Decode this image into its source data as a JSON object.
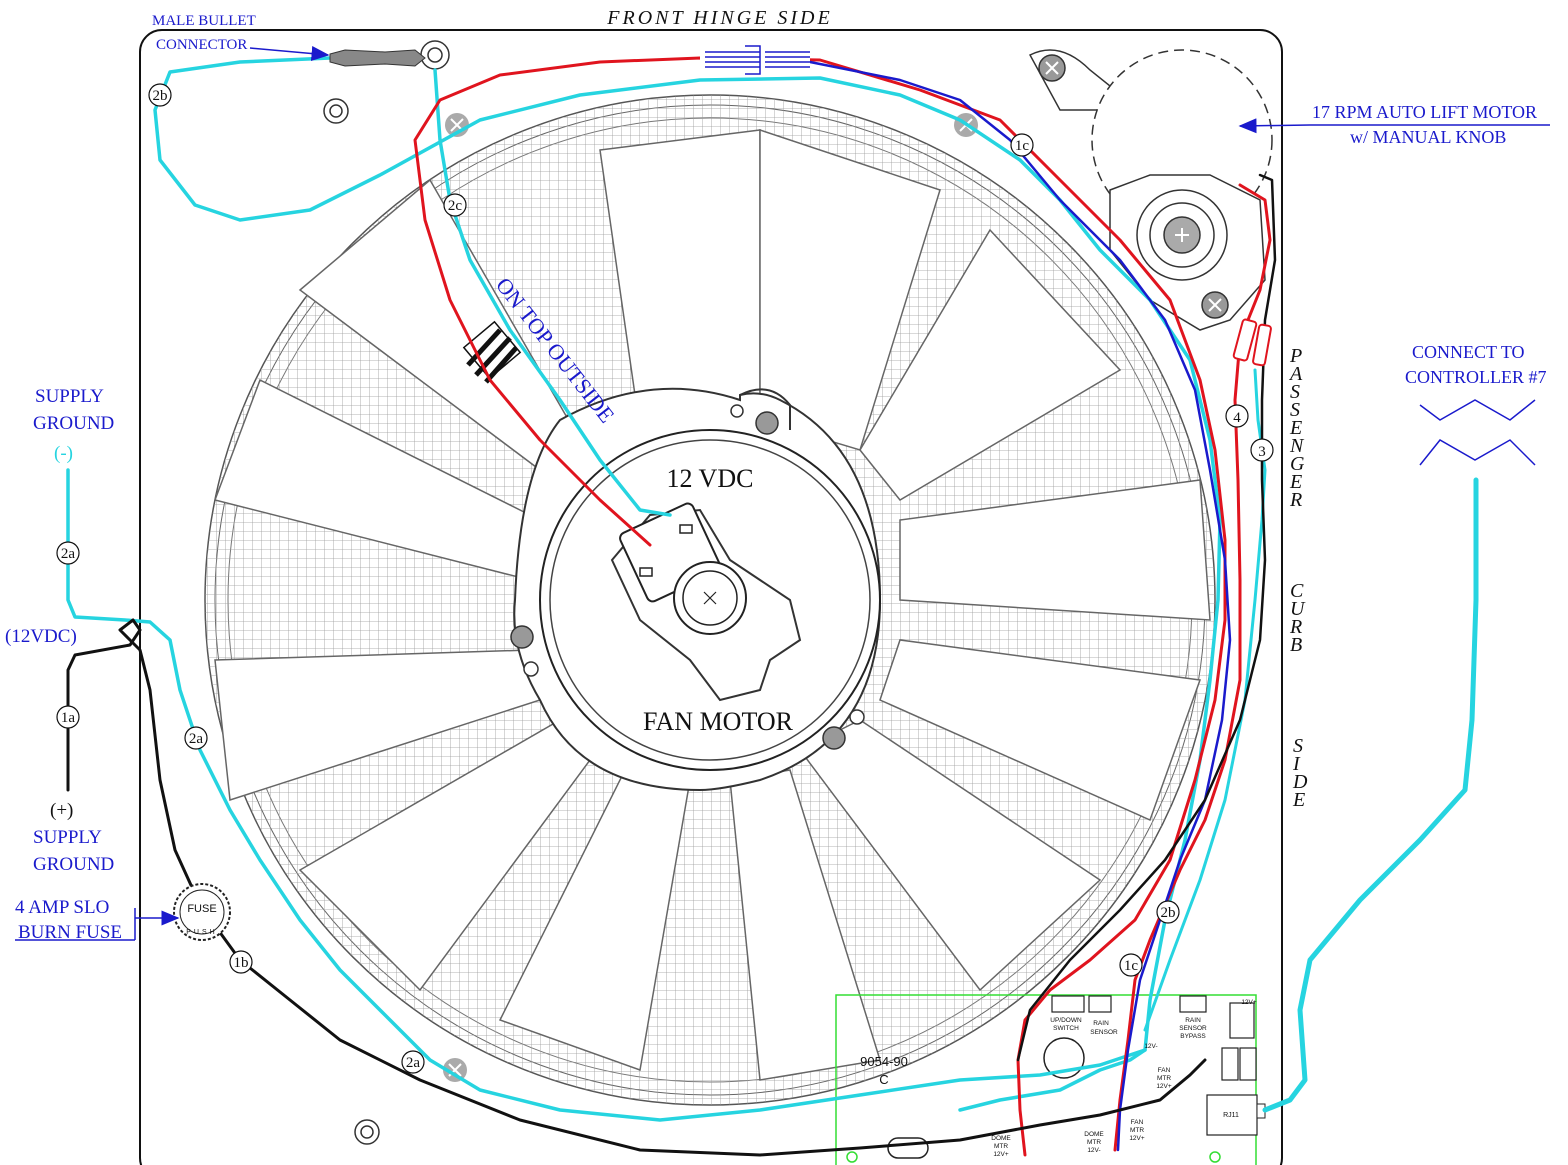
{
  "header": {
    "title": "FRONT HINGE SIDE"
  },
  "labels": {
    "male_bullet": [
      "MALE BULLET",
      "CONNECTOR"
    ],
    "lift_motor": [
      "17 RPM AUTO LIFT MOTOR",
      "w/ MANUAL KNOB"
    ],
    "connect_controller": [
      "CONNECT TO",
      "CONTROLLER #7"
    ],
    "supply_ground_top": [
      "SUPPLY",
      "GROUND",
      "(-)"
    ],
    "supply_12v": "(12VDC)",
    "supply_ground_bottom": [
      "(+)",
      "SUPPLY",
      "GROUND"
    ],
    "fuse_callout": [
      "4 AMP SLO",
      "BURN FUSE"
    ],
    "fan_motor_voltage": "12 VDC",
    "fan_motor": "FAN MOTOR",
    "on_top_outside": "ON TOP OUTSIDE",
    "fuse_face": "FUSE",
    "fuse_push": "PUSH",
    "side_passenger": "PASSENGER",
    "side_curb": "CURB",
    "side_side": "SIDE"
  },
  "wire_tags": {
    "t2b_top": "2b",
    "t2c": "2c",
    "t1c_top": "1c",
    "t4": "4",
    "t3": "3",
    "t2a_left": "2a",
    "t1a": "1a",
    "t2a_mid": "2a",
    "t1b": "1b",
    "t2a_bottom": "2a",
    "t2b_right": "2b",
    "t1c_bottom": "1c"
  },
  "board": {
    "part_number": "9054-90",
    "revision": "C",
    "up_down_switch": [
      "UP/DOWN",
      "SWITCH"
    ],
    "rain_sensor": [
      "RAIN",
      "SENSOR"
    ],
    "rain_sensor_bypass": [
      "RAIN",
      "SENSOR",
      "BYPASS"
    ],
    "t_12v_plus_top": "12V+",
    "t_12v_minus": "12V-",
    "fan_mtr_right": [
      "FAN",
      "MTR",
      "12V+"
    ],
    "dome_mtr_plus": [
      "DOME",
      "MTR",
      "12V+"
    ],
    "dome_mtr_minus": [
      "DOME",
      "MTR",
      "12V-"
    ],
    "fan_mtr_bottom": [
      "FAN",
      "MTR",
      "12V+"
    ],
    "rj11": "RJ11"
  },
  "colors": {
    "frame": "#111111",
    "wire_red": "#e0141e",
    "wire_cyan": "#26d4e0",
    "wire_blue": "#1a1acc",
    "wire_black": "#111111",
    "board_outline": "#33dd33",
    "grid": "#999999"
  }
}
